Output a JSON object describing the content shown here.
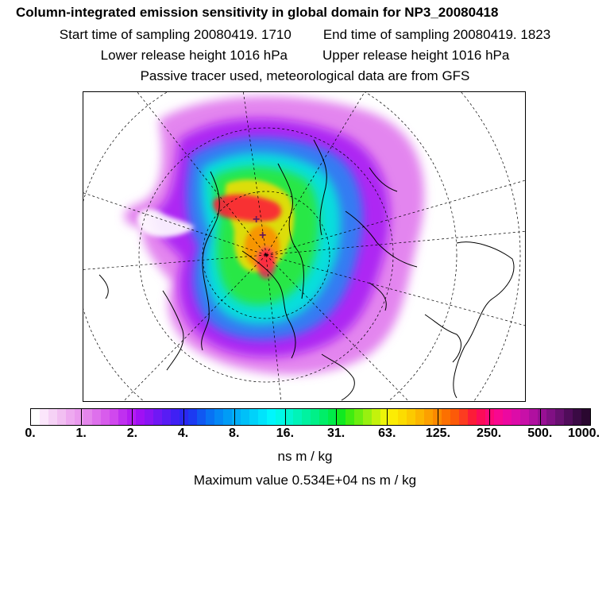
{
  "title": "Column-integrated emission sensitivity in global domain for NP3_20080418",
  "sampling": {
    "start": "Start time of sampling 20080419.  1710",
    "end": "End time of sampling 20080419.  1823"
  },
  "release": {
    "lower": "Lower release height 1016 hPa",
    "upper": "Upper release height 1016 hPa"
  },
  "note": "Passive tracer used, meteorological data are from GFS",
  "colorbar": {
    "ticks": [
      "0.",
      "1.",
      "2.",
      "4.",
      "8.",
      "16.",
      "31.",
      "63.",
      "125.",
      "250.",
      "500.",
      "1000."
    ],
    "colors": [
      "#ffffff",
      "#fbe6fb",
      "#f6d2f6",
      "#f2bff2",
      "#eeaaf0",
      "#ea9aee",
      "#e486ec",
      "#de70ec",
      "#d85cec",
      "#d048ee",
      "#c030f0",
      "#b41cf2",
      "#a010f4",
      "#8a14f4",
      "#7018f4",
      "#581cf4",
      "#4020f4",
      "#2a28f2",
      "#1c3af2",
      "#1058f2",
      "#0872f4",
      "#0488f6",
      "#009cf6",
      "#00aef8",
      "#00c0f8",
      "#00d2fa",
      "#00e4fc",
      "#00f6fc",
      "#00f8e8",
      "#00f6d0",
      "#00f4b8",
      "#00f2a0",
      "#00f088",
      "#00ee68",
      "#00ec48",
      "#10ea20",
      "#40ec10",
      "#6cee10",
      "#98f010",
      "#c4f20c",
      "#ecf408",
      "#fcec04",
      "#fcdc00",
      "#fcca00",
      "#fcb600",
      "#fca000",
      "#fc8a00",
      "#fc7000",
      "#fc5a08",
      "#fc3c20",
      "#fc1c38",
      "#fc0c58",
      "#fc0878",
      "#f80890",
      "#ec08a0",
      "#dc0ca8",
      "#c810a8",
      "#b010a0",
      "#981094",
      "#801084",
      "#681070",
      "#500c5a",
      "#3a0a44",
      "#2a0830"
    ],
    "units": "ns m / kg"
  },
  "maximum": "Maximum value  0.534E+04 ns m / kg",
  "map": {
    "label_a": "+",
    "label_b": "+"
  }
}
